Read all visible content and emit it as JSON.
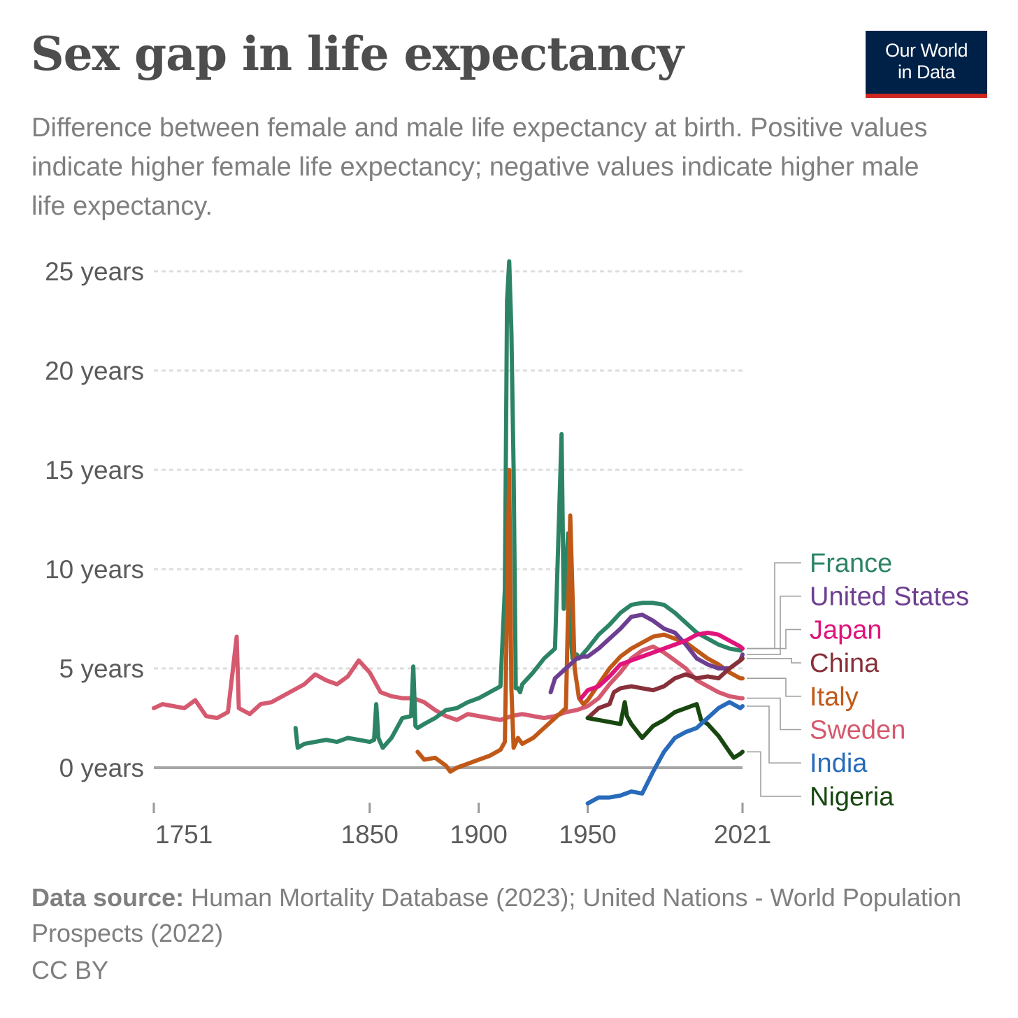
{
  "header": {
    "title": "Sex gap in life expectancy",
    "subtitle": "Difference between female and male life expectancy at birth. Positive values indicate higher female life expectancy; negative values indicate higher male life expectancy.",
    "logo_line1": "Our World",
    "logo_line2": "in Data"
  },
  "footer": {
    "source_label": "Data source:",
    "source_text": "Human Mortality Database (2023); United Nations - World Population Prospects (2022)",
    "license": "CC BY"
  },
  "colors": {
    "France": "#2c8465",
    "United States": "#6d3e91",
    "Japan": "#e0147b",
    "China": "#883039",
    "Italy": "#c05917",
    "Sweden": "#d55a6f",
    "India": "#286bbb",
    "Nigeria": "#18470f"
  },
  "chart_data": {
    "type": "line",
    "title": "Sex gap in life expectancy",
    "xlabel": "",
    "ylabel": "",
    "xlim": [
      1751,
      2021
    ],
    "ylim": [
      -2,
      25
    ],
    "x_ticks": [
      "1751",
      "1850",
      "1900",
      "1950",
      "2021"
    ],
    "y_ticks": [
      "0 years",
      "5 years",
      "10 years",
      "15 years",
      "20 years",
      "25 years"
    ],
    "y_tick_values": [
      0,
      5,
      10,
      15,
      20,
      25
    ],
    "grid": "horizontal dashed",
    "legend": "right",
    "series": [
      {
        "name": "France",
        "x": [
          1816,
          1817,
          1820,
          1825,
          1830,
          1835,
          1840,
          1845,
          1850,
          1852,
          1853,
          1854,
          1856,
          1860,
          1865,
          1869,
          1870,
          1871,
          1872,
          1875,
          1880,
          1885,
          1890,
          1895,
          1900,
          1905,
          1910,
          1912,
          1913,
          1914,
          1915,
          1916,
          1917,
          1918,
          1919,
          1920,
          1925,
          1930,
          1935,
          1938,
          1939,
          1940,
          1941,
          1942,
          1943,
          1944,
          1945,
          1946,
          1950,
          1955,
          1960,
          1965,
          1970,
          1975,
          1980,
          1985,
          1990,
          1995,
          2000,
          2005,
          2010,
          2015,
          2020,
          2021
        ],
        "y": [
          2,
          1,
          1.2,
          1.3,
          1.4,
          1.3,
          1.5,
          1.4,
          1.3,
          1.4,
          3.2,
          1.5,
          1,
          1.5,
          2.5,
          2.6,
          5.1,
          2.1,
          2,
          2.2,
          2.5,
          2.9,
          3,
          3.3,
          3.5,
          3.8,
          4.1,
          9,
          23.5,
          25.5,
          22,
          15,
          4,
          4,
          3.8,
          4.2,
          4.8,
          5.5,
          6,
          16.8,
          8,
          10,
          11.8,
          7,
          5.5,
          5.4,
          5.7,
          5.5,
          6,
          6.7,
          7.2,
          7.8,
          8.2,
          8.3,
          8.3,
          8.2,
          7.8,
          7.3,
          6.8,
          6.5,
          6.2,
          6,
          5.9,
          6
        ]
      },
      {
        "name": "United States",
        "x": [
          1933,
          1935,
          1940,
          1942,
          1945,
          1948,
          1950,
          1955,
          1960,
          1965,
          1970,
          1975,
          1980,
          1985,
          1990,
          1995,
          2000,
          2005,
          2010,
          2015,
          2020,
          2021
        ],
        "y": [
          3.8,
          4.5,
          5,
          5.2,
          5.5,
          5.6,
          5.6,
          6,
          6.5,
          7,
          7.6,
          7.7,
          7.4,
          7,
          6.8,
          6.2,
          5.5,
          5.2,
          5,
          5,
          5.4,
          5.7
        ]
      },
      {
        "name": "Japan",
        "x": [
          1947,
          1950,
          1955,
          1960,
          1965,
          1970,
          1975,
          1980,
          1985,
          1990,
          1995,
          2000,
          2005,
          2010,
          2015,
          2020,
          2021
        ],
        "y": [
          3.5,
          3.9,
          4.1,
          4.6,
          5.2,
          5.4,
          5.6,
          5.8,
          6,
          6.2,
          6.4,
          6.7,
          6.8,
          6.7,
          6.4,
          6.1,
          6
        ]
      },
      {
        "name": "China",
        "x": [
          1950,
          1955,
          1960,
          1962,
          1965,
          1970,
          1975,
          1980,
          1985,
          1990,
          1995,
          2000,
          2005,
          2010,
          2015,
          2020,
          2021
        ],
        "y": [
          2.5,
          3,
          3.2,
          3.8,
          4,
          4.1,
          4,
          3.9,
          4.1,
          4.5,
          4.7,
          4.5,
          4.6,
          4.5,
          5,
          5.4,
          5.5
        ]
      },
      {
        "name": "Italy",
        "x": [
          1872,
          1875,
          1880,
          1885,
          1887,
          1890,
          1895,
          1900,
          1905,
          1910,
          1912,
          1914,
          1915,
          1916,
          1918,
          1920,
          1925,
          1930,
          1935,
          1940,
          1942,
          1944,
          1946,
          1948,
          1950,
          1955,
          1960,
          1965,
          1970,
          1975,
          1980,
          1985,
          1990,
          1995,
          2000,
          2005,
          2010,
          2015,
          2020,
          2021
        ],
        "y": [
          0.8,
          0.4,
          0.5,
          0.1,
          -0.2,
          0,
          0.2,
          0.4,
          0.6,
          0.9,
          1.3,
          15,
          4,
          1,
          1.5,
          1.2,
          1.5,
          2,
          2.5,
          3,
          12.7,
          5,
          3.5,
          3.2,
          3.4,
          4.2,
          5,
          5.6,
          6,
          6.3,
          6.6,
          6.7,
          6.5,
          6.3,
          5.9,
          5.5,
          5.2,
          4.8,
          4.5,
          4.5
        ]
      },
      {
        "name": "Sweden",
        "x": [
          1751,
          1755,
          1760,
          1765,
          1770,
          1775,
          1780,
          1785,
          1789,
          1790,
          1795,
          1800,
          1805,
          1810,
          1815,
          1820,
          1825,
          1830,
          1835,
          1840,
          1845,
          1850,
          1855,
          1860,
          1865,
          1870,
          1875,
          1880,
          1885,
          1890,
          1895,
          1900,
          1905,
          1910,
          1915,
          1920,
          1925,
          1930,
          1935,
          1940,
          1945,
          1950,
          1955,
          1960,
          1965,
          1970,
          1975,
          1980,
          1985,
          1990,
          1995,
          2000,
          2005,
          2010,
          2015,
          2020,
          2021
        ],
        "y": [
          3,
          3.2,
          3.1,
          3,
          3.4,
          2.6,
          2.5,
          2.8,
          6.6,
          3,
          2.7,
          3.2,
          3.3,
          3.6,
          3.9,
          4.2,
          4.7,
          4.4,
          4.2,
          4.6,
          5.4,
          4.8,
          3.8,
          3.6,
          3.5,
          3.5,
          3.3,
          2.9,
          2.6,
          2.4,
          2.7,
          2.6,
          2.5,
          2.4,
          2.6,
          2.7,
          2.6,
          2.5,
          2.6,
          2.8,
          2.9,
          3.1,
          3.5,
          4.2,
          4.8,
          5.5,
          5.9,
          6.1,
          5.8,
          5.4,
          5,
          4.4,
          4.1,
          3.8,
          3.6,
          3.5,
          3.5
        ]
      },
      {
        "name": "India",
        "x": [
          1950,
          1955,
          1960,
          1965,
          1970,
          1975,
          1980,
          1985,
          1990,
          1995,
          2000,
          2005,
          2010,
          2015,
          2020,
          2021
        ],
        "y": [
          -1.8,
          -1.5,
          -1.5,
          -1.4,
          -1.2,
          -1.3,
          -0.2,
          0.8,
          1.5,
          1.8,
          2,
          2.5,
          3,
          3.3,
          3,
          3.1
        ]
      },
      {
        "name": "Nigeria",
        "x": [
          1950,
          1955,
          1960,
          1965,
          1967,
          1968,
          1970,
          1975,
          1980,
          1985,
          1990,
          1995,
          2000,
          2002,
          2005,
          2010,
          2015,
          2017,
          2020,
          2021
        ],
        "y": [
          2.5,
          2.4,
          2.3,
          2.2,
          3.3,
          2.6,
          2.2,
          1.5,
          2.1,
          2.4,
          2.8,
          3,
          3.2,
          2.4,
          2.2,
          1.6,
          0.8,
          0.5,
          0.7,
          0.8
        ]
      }
    ]
  }
}
